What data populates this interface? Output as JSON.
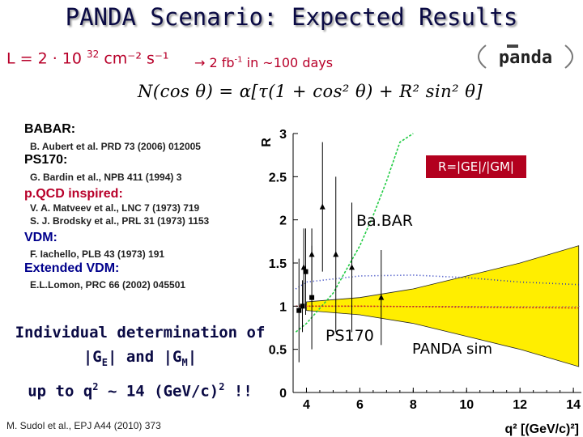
{
  "slide": {
    "title": "PANDA Scenario: Expected Results",
    "luminosity": {
      "prefix": "L = 2 · 10 ",
      "exponent": "32",
      "units": " cm⁻² s⁻¹"
    },
    "integrated": {
      "prefix": "→ 2 fb",
      "exponent": "-1",
      "suffix": " in ~100 days"
    },
    "formula": "N(cos θ) = α[τ(1 + cos² θ) + R² sin² θ]",
    "logo_text": "panda"
  },
  "references": [
    {
      "heading": "BABAR:",
      "lines": [
        "B. Aubert et al. PRD 73 (2006) 012005"
      ]
    },
    {
      "heading": "PS170:",
      "lines": [
        "G. Bardin et al., NPB 411 (1994) 3"
      ]
    },
    {
      "heading": "p.QCD inspired:",
      "lines": [
        "V. A. Matveev et al., LNC 7 (1973) 719",
        "S. J. Brodsky et al., PRL 31 (1973) 1153"
      ]
    },
    {
      "heading": "VDM:",
      "lines": [
        "F. Iachello, PLB 43 (1973) 191"
      ]
    },
    {
      "heading": "Extended VDM:",
      "lines": [
        "E.L.Lomon, PRC 66 (2002) 045501"
      ]
    }
  ],
  "summary": {
    "line1": "Individual determination of",
    "line2_a": "|G",
    "line2_b": "E",
    "line2_c": "| and |G",
    "line2_d": "M",
    "line2_e": "|",
    "line3_a": "up to q",
    "line3_b": "2",
    "line3_c": " ~ 14 (GeV/c)",
    "line3_d": "2",
    "line3_e": " !!"
  },
  "citation": "M. Sudol et al., EPJ A44 (2010) 373",
  "plot": {
    "ratio_label": "R=|GE|/|GM|",
    "labels": {
      "babar": "Ba.BAR",
      "ps170": "PS170",
      "panda": "PANDA sim"
    }
  },
  "chart_data": {
    "type": "scatter",
    "ylabel": "R",
    "xlabel": "q² [(GeV/c)²]",
    "xlim": [
      3.5,
      14.3
    ],
    "ylim": [
      0,
      3
    ],
    "xticks": [
      4,
      6,
      8,
      10,
      12,
      14
    ],
    "yticks": [
      0,
      0.5,
      1,
      1.5,
      2,
      2.5,
      3
    ],
    "babar": {
      "x": [
        3.9,
        4.2,
        4.6,
        5.1,
        5.7,
        6.8
      ],
      "y": [
        1.45,
        1.6,
        2.15,
        1.6,
        1.45,
        1.1
      ],
      "err": [
        0.45,
        0.3,
        0.75,
        0.9,
        0.75,
        0.55
      ]
    },
    "ps170": {
      "x": [
        3.72,
        3.85,
        3.97,
        4.2
      ],
      "y": [
        0.95,
        1.0,
        1.4,
        1.1
      ],
      "err": [
        0.6,
        0.3,
        0.5,
        0.6
      ]
    },
    "curves": {
      "pqcd_green": {
        "x": [
          3.6,
          4,
          5,
          6,
          6.5,
          7,
          7.5,
          8
        ],
        "y": [
          0.7,
          0.8,
          1.15,
          1.7,
          2.05,
          2.45,
          2.9,
          3.0
        ]
      },
      "vdm_blue": {
        "x": [
          3.6,
          4,
          6,
          8,
          10,
          12,
          14.2
        ],
        "y": [
          1.2,
          1.28,
          1.35,
          1.36,
          1.33,
          1.28,
          1.25
        ]
      },
      "ext_vdm_red": {
        "x": [
          3.6,
          6,
          10,
          14.2
        ],
        "y": [
          1.0,
          1.0,
          0.99,
          0.98
        ]
      }
    },
    "panda_band": {
      "x": [
        4,
        6,
        8,
        10,
        12,
        14.2
      ],
      "upper": [
        1.05,
        1.1,
        1.2,
        1.35,
        1.5,
        1.7
      ],
      "lower": [
        0.95,
        0.9,
        0.8,
        0.65,
        0.5,
        0.3
      ]
    }
  }
}
